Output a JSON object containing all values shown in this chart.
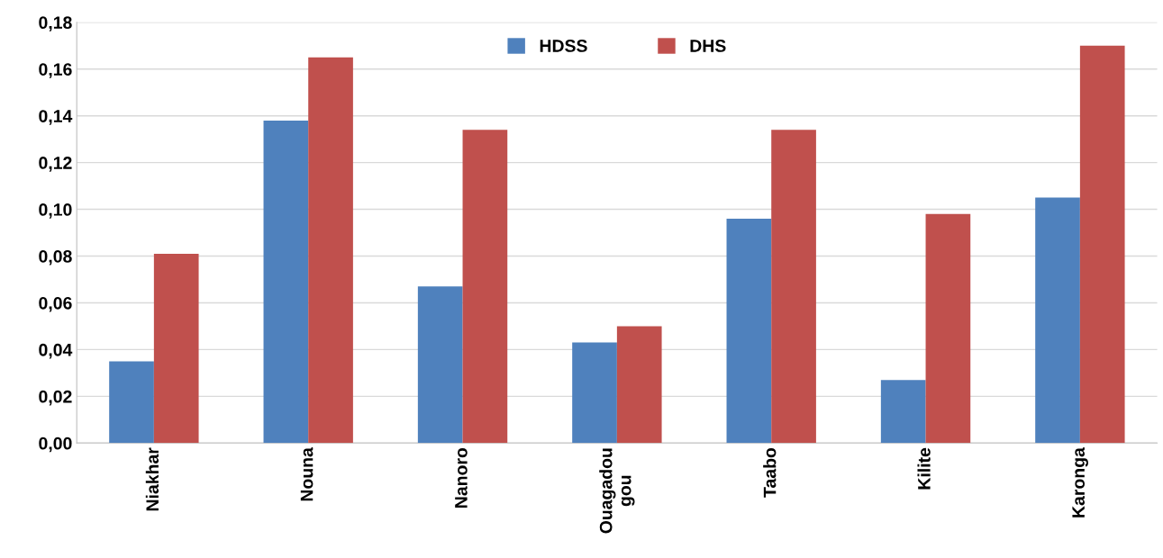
{
  "chart_data": {
    "type": "bar",
    "categories": [
      "Niakhar",
      "Nouna",
      "Nanoro",
      "Ouagadou\ngou",
      "Taabo",
      "Kilite",
      "Karonga"
    ],
    "series": [
      {
        "name": "HDSS",
        "color": "#4f81bd",
        "values": [
          0.035,
          0.138,
          0.067,
          0.043,
          0.096,
          0.027,
          0.105
        ]
      },
      {
        "name": "DHS",
        "color": "#c0504d",
        "values": [
          0.081,
          0.165,
          0.134,
          0.05,
          0.134,
          0.098,
          0.17
        ]
      }
    ],
    "ylim": [
      0,
      0.18
    ],
    "yticks": [
      {
        "value": 0,
        "label": "0,00"
      },
      {
        "value": 0.02,
        "label": "0,02"
      },
      {
        "value": 0.04,
        "label": "0,04"
      },
      {
        "value": 0.06,
        "label": "0,06"
      },
      {
        "value": 0.08,
        "label": "0,08"
      },
      {
        "value": 0.1,
        "label": "0,10"
      },
      {
        "value": 0.12,
        "label": "0,12"
      },
      {
        "value": 0.14,
        "label": "0,14"
      },
      {
        "value": 0.16,
        "label": "0,16"
      },
      {
        "value": 0.18,
        "label": "0,18"
      }
    ],
    "grid": "y",
    "legend": "top"
  }
}
